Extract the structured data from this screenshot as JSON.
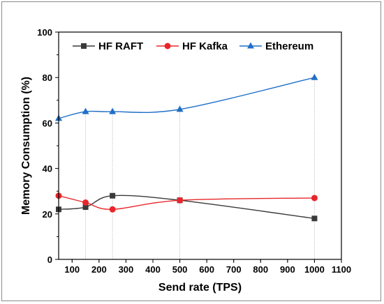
{
  "chart_data": {
    "type": "line",
    "xlabel": "Send rate (TPS)",
    "ylabel": "Memory Consumption (%)",
    "xlim": [
      50,
      1100
    ],
    "ylim": [
      0,
      100
    ],
    "xticks": [
      100,
      200,
      300,
      400,
      500,
      600,
      700,
      800,
      900,
      1000,
      1100
    ],
    "yticks": [
      0,
      20,
      40,
      60,
      80,
      100
    ],
    "x": [
      50,
      150,
      250,
      500,
      1000
    ],
    "smoothed": true,
    "drop_lines": true,
    "legend_position": "top",
    "series": [
      {
        "name": "HF RAFT",
        "marker": "square",
        "color": "#3a3a3a",
        "values": [
          22,
          23,
          28,
          26,
          18
        ]
      },
      {
        "name": "HF Kafka",
        "marker": "circle",
        "color": "#e8262a",
        "values": [
          28,
          25,
          22,
          26,
          27
        ]
      },
      {
        "name": "Ethereum",
        "marker": "triangle",
        "color": "#1f6fc7",
        "values": [
          62,
          65,
          65,
          66,
          80
        ]
      }
    ]
  }
}
